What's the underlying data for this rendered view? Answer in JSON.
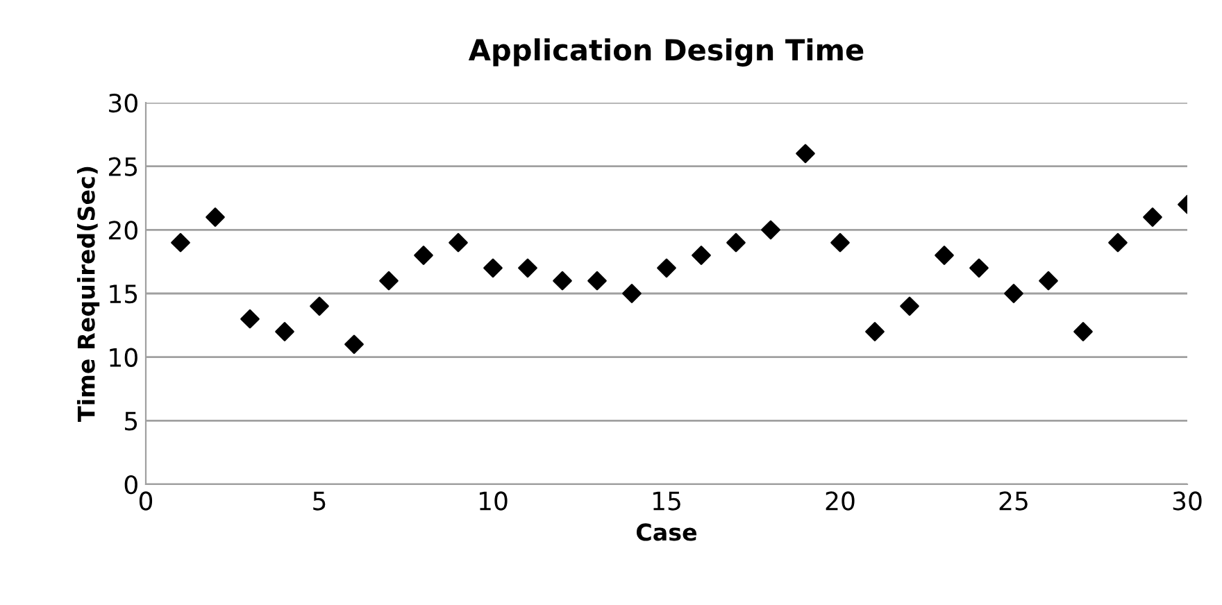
{
  "chart_data": {
    "type": "scatter",
    "title": "Application Design Time",
    "xlabel": "Case",
    "ylabel": "Time Required(Sec)",
    "x": [
      1,
      2,
      3,
      4,
      5,
      6,
      7,
      8,
      9,
      10,
      11,
      12,
      13,
      14,
      15,
      16,
      17,
      18,
      19,
      20,
      21,
      22,
      23,
      24,
      25,
      26,
      27,
      28,
      29,
      30
    ],
    "series": [
      {
        "color": "#000000",
        "values": [
          19,
          21,
          13,
          12,
          14,
          11,
          16,
          18,
          19,
          17,
          17,
          16,
          16,
          15,
          17,
          18,
          19,
          20,
          26,
          19,
          12,
          14,
          18,
          17,
          15,
          16,
          12,
          19,
          21,
          22
        ]
      }
    ],
    "xlim": [
      0,
      30
    ],
    "xticks": [
      0,
      5,
      10,
      15,
      20,
      25,
      30
    ],
    "ylim": [
      0,
      30
    ],
    "yticks": [
      0,
      5,
      10,
      15,
      20,
      25,
      30
    ],
    "grid": "y",
    "legend": false,
    "marker": "diamond"
  }
}
